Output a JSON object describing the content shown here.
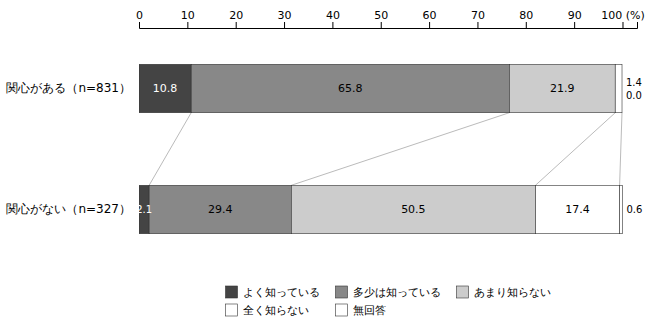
{
  "chart_data": {
    "type": "bar",
    "orientation": "horizontal",
    "stacked": true,
    "data_labels": true,
    "legend": "bottom",
    "categories": [
      "関心がある（n=831）",
      "関心がない（n=327）"
    ],
    "series": [
      {
        "name": "よく知っている",
        "color": "#444444",
        "values": [
          10.8,
          2.1
        ],
        "value_labels": [
          "10.8",
          "2.1"
        ]
      },
      {
        "name": "多少は知っている",
        "color": "#888888",
        "values": [
          65.8,
          29.4
        ],
        "value_labels": [
          "65.8",
          "29.4"
        ]
      },
      {
        "name": "あまり知らない",
        "color": "#cccccc",
        "values": [
          21.9,
          50.5
        ],
        "value_labels": [
          "21.9",
          "50.5"
        ]
      },
      {
        "name": "全く知らない",
        "color": "#ffffff",
        "values": [
          1.4,
          17.4
        ],
        "value_labels": [
          "1.4",
          "17.4"
        ]
      },
      {
        "name": "無回答",
        "color": "#ffffff",
        "values": [
          0.0,
          0.6
        ],
        "value_labels": [
          "0.0",
          "0.6"
        ]
      }
    ],
    "xlim": [
      0,
      103
    ],
    "xticks": [
      0,
      10,
      20,
      30,
      40,
      50,
      60,
      70,
      80,
      90,
      {
        "value": 100,
        "label": "100 (%)"
      }
    ]
  }
}
